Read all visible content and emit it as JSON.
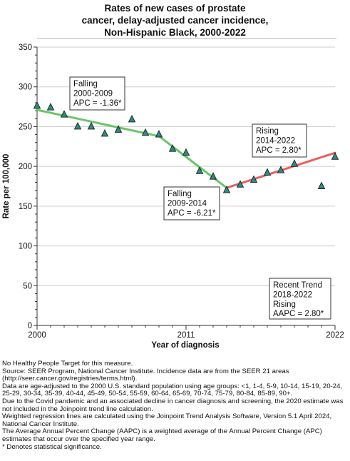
{
  "chart_data": {
    "type": "line",
    "title_lines": [
      "Rates of new cases of prostate",
      "cancer, delay-adjusted cancer incidence,",
      "Non-Hispanic Black,  2000-2022"
    ],
    "xlabel": "Year of diagnosis",
    "ylabel": "Rate per 100,000",
    "xlim": [
      2000,
      2022
    ],
    "ylim": [
      0,
      350
    ],
    "x_ticks": [
      "2000",
      "2011",
      "2022"
    ],
    "y_ticks": [
      "0",
      "50",
      "100",
      "150",
      "200",
      "250",
      "300",
      "350"
    ],
    "grid": true,
    "observed": {
      "x": [
        2000,
        2001,
        2002,
        2003,
        2004,
        2005,
        2006,
        2007,
        2008,
        2009,
        2010,
        2011,
        2012,
        2013,
        2014,
        2015,
        2016,
        2017,
        2018,
        2019,
        2021,
        2022
      ],
      "y": [
        276,
        274,
        265,
        250,
        250,
        241,
        246,
        259,
        242,
        240,
        222,
        217,
        194,
        187,
        170,
        177,
        183,
        192,
        195,
        203,
        175,
        212
      ],
      "marker_color": "#2e8b82"
    },
    "trend_segments": [
      {
        "x": [
          2000,
          2009
        ],
        "y": [
          271,
          238
        ],
        "color": "#6dc46a"
      },
      {
        "x": [
          2009,
          2014
        ],
        "y": [
          238,
          173
        ],
        "color": "#6dc46a"
      },
      {
        "x": [
          2014,
          2022
        ],
        "y": [
          173,
          217
        ],
        "color": "#e9605e"
      }
    ],
    "annotations": [
      {
        "lines": [
          "Falling",
          "2000-2009",
          "APC = -1.36*"
        ]
      },
      {
        "lines": [
          "Falling",
          "2009-2014",
          "APC = -6.21*"
        ]
      },
      {
        "lines": [
          "Rising",
          "2014-2022",
          "APC =  2.80*"
        ]
      },
      {
        "lines": [
          "Recent Trend",
          "2018-2022",
          "Rising",
          "AAPC =  2.80*"
        ]
      }
    ]
  },
  "footnotes": [
    "No Healthy People Target for this measure.",
    "Source: SEER Program, National Cancer Institute. Incidence data are from the SEER 21 areas (http://seer.cancer.gov/registries/terms.html).",
    "Data are age-adjusted to the 2000 U.S. standard population using age groups: <1, 1-4, 5-9, 10-14, 15-19, 20-24, 25-29, 30-34, 35-39, 40-44, 45-49, 50-54, 55-59, 60-64, 65-69, 70-74, 75-79, 80-84, 85-89, 90+.",
    "Due to the Covid pandemic and an associated decline in cancer diagnosis and screening, the 2020 estimate was not included in the Joinpoint trend line calculation.",
    "Weighted regression lines are calculated using the Joinpoint Trend Analysis Software, Version 5.1 April 2024, National Cancer Institute.",
    "The Average Annual Percent Change (AAPC) is a weighted average of the Annual Percent Change (APC) estimates that occur over the specified year range.",
    "* Denotes statistical significance."
  ]
}
